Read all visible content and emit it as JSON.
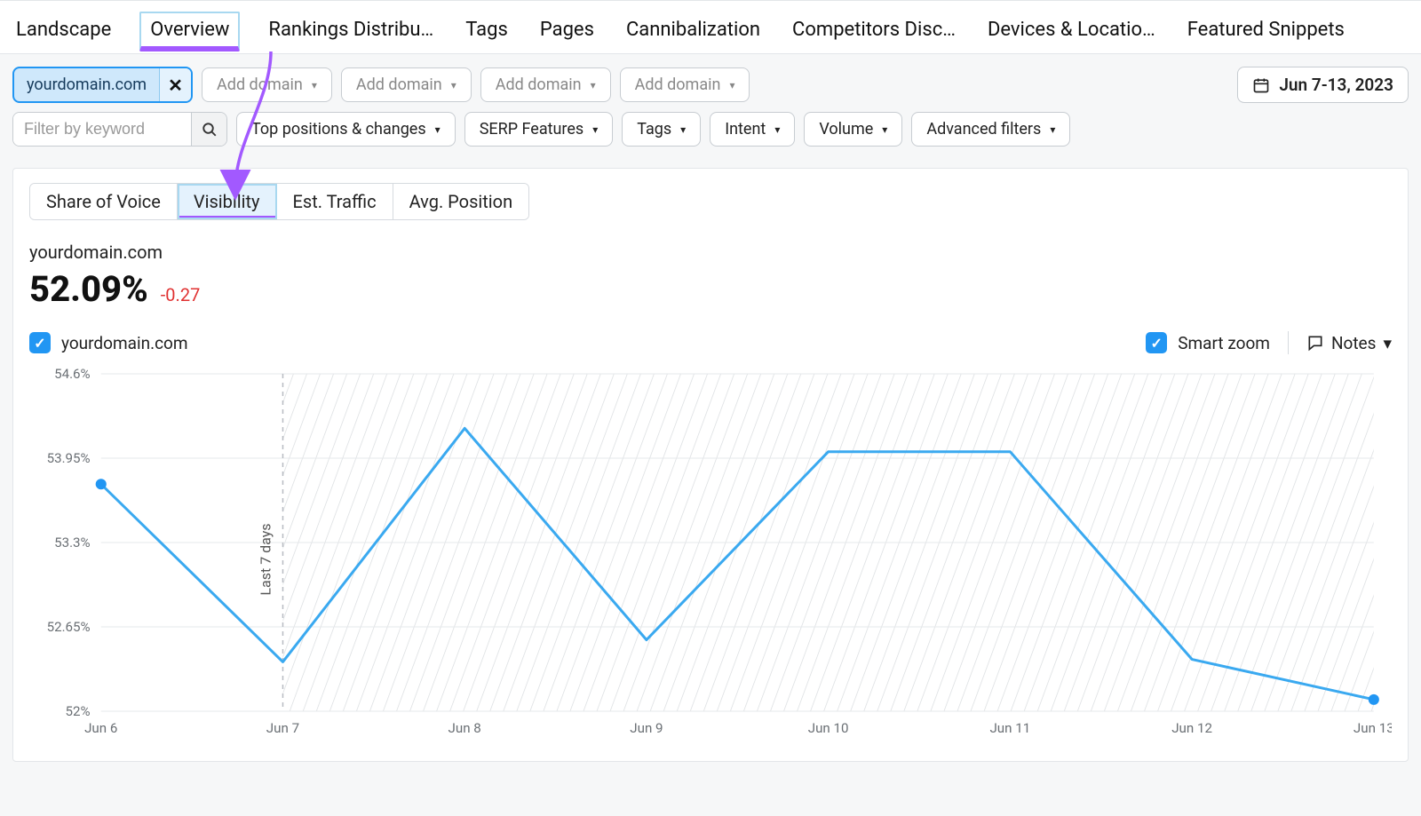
{
  "nav": {
    "tabs": [
      {
        "label": "Landscape"
      },
      {
        "label": "Overview",
        "active": true
      },
      {
        "label": "Rankings Distribu…"
      },
      {
        "label": "Tags"
      },
      {
        "label": "Pages"
      },
      {
        "label": "Cannibalization"
      },
      {
        "label": "Competitors Disc…"
      },
      {
        "label": "Devices & Locatio…"
      },
      {
        "label": "Featured Snippets"
      }
    ]
  },
  "filters": {
    "domain_chip": "yourdomain.com",
    "add_domain_label": "Add domain",
    "add_domain_count": 4,
    "date_label": "Jun 7-13, 2023",
    "keyword_filter_placeholder": "Filter by keyword",
    "row2": [
      "Top positions & changes",
      "SERP Features",
      "Tags",
      "Intent",
      "Volume",
      "Advanced filters"
    ]
  },
  "metric_tabs": [
    {
      "label": "Share of Voice"
    },
    {
      "label": "Visibility",
      "active": true
    },
    {
      "label": "Est. Traffic"
    },
    {
      "label": "Avg. Position"
    }
  ],
  "headline": {
    "domain": "yourdomain.com",
    "value": "52.09%",
    "delta": "-0.27"
  },
  "legend": {
    "series_label": "yourdomain.com",
    "smart_zoom": "Smart zoom",
    "notes": "Notes"
  },
  "chart": {
    "type": "line",
    "x_labels": [
      "Jun 6",
      "Jun 7",
      "Jun 8",
      "Jun 9",
      "Jun 10",
      "Jun 11",
      "Jun 12",
      "Jun 13"
    ],
    "y_ticks": [
      52,
      52.65,
      53.3,
      53.95,
      54.6
    ],
    "y_tick_labels": [
      "52%",
      "52.65%",
      "53.3%",
      "53.95%",
      "54.6%"
    ],
    "ylim": [
      52,
      54.6
    ],
    "values": [
      53.75,
      52.38,
      54.18,
      52.55,
      54.0,
      54.0,
      52.4,
      52.09
    ],
    "marker_indices": [
      0,
      7
    ],
    "line_color": "#3aa9f0",
    "line_width": 3,
    "marker_color": "#2196f3",
    "marker_radius": 6,
    "grid_color": "#e6e8eb",
    "hatch_color": "#d9dcdf",
    "hatch_start_index": 1,
    "dashed_color": "#b8bcc2",
    "background": "#ffffff",
    "axis_label_color": "#6b7075",
    "axis_label_fontsize": 15,
    "vertical_caption": "Last 7 days"
  },
  "colors": {
    "highlight_border": "#a8d8f0",
    "highlight_underline": "#a259ff",
    "primary_blue": "#2196f3",
    "delta_red": "#e03131"
  }
}
